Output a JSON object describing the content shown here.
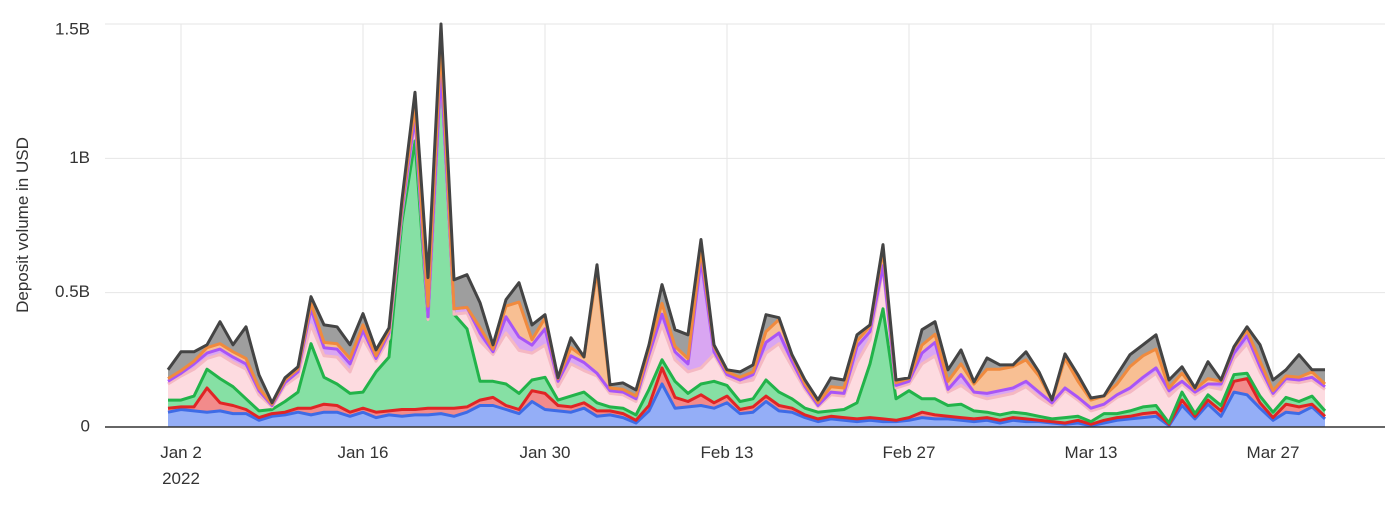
{
  "chart_data": {
    "type": "stacked-area",
    "y_label": "Deposit volume in USD",
    "ylim": [
      0,
      1500000000.0
    ],
    "yticks": [
      0,
      {
        "value": 500000000.0,
        "label": "0.5B"
      },
      {
        "value": 1000000000.0,
        "label": "1B"
      },
      {
        "value": 1500000000.0,
        "label": "1.5B"
      }
    ],
    "xticks": [
      {
        "value": "2022-01-02",
        "label": "Jan 2",
        "sublabel": "2022"
      },
      {
        "value": "2022-01-16",
        "label": "Jan 16"
      },
      {
        "value": "2022-01-30",
        "label": "Jan 30"
      },
      {
        "value": "2022-02-13",
        "label": "Feb 13"
      },
      {
        "value": "2022-02-27",
        "label": "Feb 27"
      },
      {
        "value": "2022-03-13",
        "label": "Mar 13"
      },
      {
        "value": "2022-03-27",
        "label": "Mar 27"
      }
    ],
    "grid": true,
    "x": [
      "2022-01-01",
      "2022-01-02",
      "2022-01-03",
      "2022-01-04",
      "2022-01-05",
      "2022-01-06",
      "2022-01-07",
      "2022-01-08",
      "2022-01-09",
      "2022-01-10",
      "2022-01-11",
      "2022-01-12",
      "2022-01-13",
      "2022-01-14",
      "2022-01-15",
      "2022-01-16",
      "2022-01-17",
      "2022-01-18",
      "2022-01-19",
      "2022-01-20",
      "2022-01-21",
      "2022-01-22",
      "2022-01-23",
      "2022-01-24",
      "2022-01-25",
      "2022-01-26",
      "2022-01-27",
      "2022-01-28",
      "2022-01-29",
      "2022-01-30",
      "2022-01-31",
      "2022-02-01",
      "2022-02-02",
      "2022-02-03",
      "2022-02-04",
      "2022-02-05",
      "2022-02-06",
      "2022-02-07",
      "2022-02-08",
      "2022-02-09",
      "2022-02-10",
      "2022-02-11",
      "2022-02-12",
      "2022-02-13",
      "2022-02-14",
      "2022-02-15",
      "2022-02-16",
      "2022-02-17",
      "2022-02-18",
      "2022-02-19",
      "2022-02-20",
      "2022-02-21",
      "2022-02-22",
      "2022-02-23",
      "2022-02-24",
      "2022-02-25",
      "2022-02-26",
      "2022-02-27",
      "2022-02-28",
      "2022-03-01",
      "2022-03-02",
      "2022-03-03",
      "2022-03-04",
      "2022-03-05",
      "2022-03-06",
      "2022-03-07",
      "2022-03-08",
      "2022-03-09",
      "2022-03-10",
      "2022-03-11",
      "2022-03-12",
      "2022-03-13",
      "2022-03-14",
      "2022-03-15",
      "2022-03-16",
      "2022-03-17",
      "2022-03-18",
      "2022-03-19",
      "2022-03-20",
      "2022-03-21",
      "2022-03-22",
      "2022-03-23",
      "2022-03-24",
      "2022-03-25",
      "2022-03-26",
      "2022-03-27",
      "2022-03-28",
      "2022-03-29",
      "2022-03-30",
      "2022-03-31"
    ],
    "series": [
      {
        "color": "#3e6be6",
        "fill": "#94aef7",
        "values": [
          55000000.0,
          65000000.0,
          60000000.0,
          55000000.0,
          60000000.0,
          50000000.0,
          50000000.0,
          25000000.0,
          40000000.0,
          45000000.0,
          55000000.0,
          45000000.0,
          55000000.0,
          55000000.0,
          40000000.0,
          55000000.0,
          35000000.0,
          45000000.0,
          40000000.0,
          45000000.0,
          45000000.0,
          50000000.0,
          40000000.0,
          55000000.0,
          80000000.0,
          80000000.0,
          65000000.0,
          50000000.0,
          95000000.0,
          65000000.0,
          60000000.0,
          55000000.0,
          70000000.0,
          40000000.0,
          45000000.0,
          35000000.0,
          15000000.0,
          60000000.0,
          160000000.0,
          70000000.0,
          75000000.0,
          80000000.0,
          70000000.0,
          90000000.0,
          50000000.0,
          55000000.0,
          95000000.0,
          60000000.0,
          55000000.0,
          35000000.0,
          20000000.0,
          30000000.0,
          25000000.0,
          20000000.0,
          25000000.0,
          20000000.0,
          20000000.0,
          25000000.0,
          35000000.0,
          30000000.0,
          30000000.0,
          25000000.0,
          20000000.0,
          25000000.0,
          15000000.0,
          25000000.0,
          20000000.0,
          20000000.0,
          15000000.0,
          10000000.0,
          15000000.0,
          5000000.0,
          15000000.0,
          25000000.0,
          30000000.0,
          35000000.0,
          40000000.0,
          5000000.0,
          80000000.0,
          30000000.0,
          85000000.0,
          40000000.0,
          130000000.0,
          120000000.0,
          70000000.0,
          25000000.0,
          55000000.0,
          50000000.0,
          75000000.0,
          30000000.0
        ]
      },
      {
        "color": "#e02525",
        "fill": "#f28b8b",
        "values": [
          15000000.0,
          10000000.0,
          15000000.0,
          90000000.0,
          30000000.0,
          30000000.0,
          15000000.0,
          10000000.0,
          10000000.0,
          10000000.0,
          15000000.0,
          25000000.0,
          30000000.0,
          25000000.0,
          15000000.0,
          15000000.0,
          20000000.0,
          15000000.0,
          25000000.0,
          20000000.0,
          25000000.0,
          20000000.0,
          30000000.0,
          20000000.0,
          20000000.0,
          30000000.0,
          15000000.0,
          15000000.0,
          40000000.0,
          60000000.0,
          20000000.0,
          20000000.0,
          20000000.0,
          20000000.0,
          15000000.0,
          15000000.0,
          10000000.0,
          20000000.0,
          60000000.0,
          40000000.0,
          20000000.0,
          40000000.0,
          20000000.0,
          25000000.0,
          15000000.0,
          20000000.0,
          20000000.0,
          20000000.0,
          15000000.0,
          10000000.0,
          10000000.0,
          10000000.0,
          10000000.0,
          10000000.0,
          10000000.0,
          10000000.0,
          5000000.0,
          10000000.0,
          20000000.0,
          15000000.0,
          10000000.0,
          10000000.0,
          10000000.0,
          10000000.0,
          10000000.0,
          10000000.0,
          10000000.0,
          5000000.0,
          5000000.0,
          5000000.0,
          10000000.0,
          5000000.0,
          10000000.0,
          10000000.0,
          10000000.0,
          15000000.0,
          15000000.0,
          5000000.0,
          20000000.0,
          10000000.0,
          15000000.0,
          20000000.0,
          40000000.0,
          60000000.0,
          20000000.0,
          10000000.0,
          30000000.0,
          25000000.0,
          10000000.0,
          10000000.0
        ]
      },
      {
        "color": "#22b34a",
        "fill": "#86e0a4",
        "values": [
          30000000.0,
          25000000.0,
          40000000.0,
          70000000.0,
          90000000.0,
          70000000.0,
          40000000.0,
          25000000.0,
          15000000.0,
          40000000.0,
          60000000.0,
          240000000.0,
          100000000.0,
          80000000.0,
          70000000.0,
          60000000.0,
          150000000.0,
          200000000.0,
          700000000.0,
          1000000000.0,
          330000000.0,
          1250000000.0,
          350000000.0,
          290000000.0,
          70000000.0,
          60000000.0,
          80000000.0,
          60000000.0,
          40000000.0,
          60000000.0,
          20000000.0,
          40000000.0,
          40000000.0,
          30000000.0,
          15000000.0,
          20000000.0,
          20000000.0,
          60000000.0,
          30000000.0,
          60000000.0,
          30000000.0,
          40000000.0,
          80000000.0,
          40000000.0,
          30000000.0,
          30000000.0,
          60000000.0,
          50000000.0,
          35000000.0,
          25000000.0,
          25000000.0,
          20000000.0,
          30000000.0,
          60000000.0,
          200000000.0,
          410000000.0,
          80000000.0,
          100000000.0,
          50000000.0,
          60000000.0,
          40000000.0,
          50000000.0,
          30000000.0,
          20000000.0,
          20000000.0,
          20000000.0,
          20000000.0,
          15000000.0,
          10000000.0,
          20000000.0,
          15000000.0,
          10000000.0,
          25000000.0,
          15000000.0,
          20000000.0,
          25000000.0,
          25000000.0,
          5000000.0,
          30000000.0,
          10000000.0,
          20000000.0,
          20000000.0,
          25000000.0,
          20000000.0,
          25000000.0,
          20000000.0,
          25000000.0,
          20000000.0,
          30000000.0,
          20000000.0
        ]
      },
      {
        "color": "#f5b8c2",
        "fill": "#fddbe0",
        "values": [
          60000000.0,
          90000000.0,
          100000000.0,
          40000000.0,
          90000000.0,
          90000000.0,
          110000000.0,
          60000000.0,
          10000000.0,
          60000000.0,
          60000000.0,
          70000000.0,
          80000000.0,
          100000000.0,
          80000000.0,
          200000000.0,
          40000000.0,
          70000000.0,
          30000000.0,
          80000000.0,
          0,
          0,
          0,
          60000000.0,
          150000000.0,
          100000000.0,
          190000000.0,
          160000000.0,
          100000000.0,
          120000000.0,
          50000000.0,
          120000000.0,
          80000000.0,
          100000000.0,
          50000000.0,
          50000000.0,
          50000000.0,
          100000000.0,
          130000000.0,
          80000000.0,
          80000000.0,
          60000000.0,
          100000000.0,
          30000000.0,
          70000000.0,
          70000000.0,
          100000000.0,
          180000000.0,
          120000000.0,
          70000000.0,
          20000000.0,
          60000000.0,
          50000000.0,
          150000000.0,
          90000000.0,
          150000000.0,
          40000000.0,
          25000000.0,
          130000000.0,
          160000000.0,
          50000000.0,
          70000000.0,
          60000000.0,
          50000000.0,
          70000000.0,
          70000000.0,
          100000000.0,
          70000000.0,
          50000000.0,
          100000000.0,
          60000000.0,
          40000000.0,
          25000000.0,
          60000000.0,
          70000000.0,
          90000000.0,
          120000000.0,
          100000000.0,
          30000000.0,
          70000000.0,
          30000000.0,
          60000000.0,
          60000000.0,
          110000000.0,
          90000000.0,
          60000000.0,
          60000000.0,
          70000000.0,
          60000000.0,
          80000000.0
        ]
      },
      {
        "color": "#a855f7",
        "fill": "#d9a6f2",
        "values": [
          10000000.0,
          10000000.0,
          20000000.0,
          20000000.0,
          20000000.0,
          20000000.0,
          20000000.0,
          15000000.0,
          5000000.0,
          10000000.0,
          15000000.0,
          60000000.0,
          30000000.0,
          30000000.0,
          30000000.0,
          30000000.0,
          10000000.0,
          20000000.0,
          10000000.0,
          10000000.0,
          10000000.0,
          10000000.0,
          20000000.0,
          20000000.0,
          30000000.0,
          10000000.0,
          60000000.0,
          50000000.0,
          30000000.0,
          60000000.0,
          20000000.0,
          30000000.0,
          30000000.0,
          10000000.0,
          10000000.0,
          10000000.0,
          10000000.0,
          30000000.0,
          40000000.0,
          30000000.0,
          30000000.0,
          400000000.0,
          10000000.0,
          10000000.0,
          10000000.0,
          20000000.0,
          40000000.0,
          40000000.0,
          20000000.0,
          10000000.0,
          5000000.0,
          10000000.0,
          10000000.0,
          60000000.0,
          30000000.0,
          10000000.0,
          10000000.0,
          10000000.0,
          40000000.0,
          50000000.0,
          10000000.0,
          40000000.0,
          10000000.0,
          20000000.0,
          20000000.0,
          20000000.0,
          20000000.0,
          20000000.0,
          10000000.0,
          10000000.0,
          10000000.0,
          10000000.0,
          10000000.0,
          10000000.0,
          15000000.0,
          20000000.0,
          20000000.0,
          20000000.0,
          10000000.0,
          10000000.0,
          10000000.0,
          20000000.0,
          20000000.0,
          30000000.0,
          20000000.0,
          10000000.0,
          10000000.0,
          10000000.0,
          10000000.0,
          10000000.0
        ]
      },
      {
        "color": "#f08a3e",
        "fill": "#f8bf93",
        "values": [
          10000000.0,
          10000000.0,
          10000000.0,
          20000000.0,
          20000000.0,
          20000000.0,
          20000000.0,
          10000000.0,
          5000000.0,
          10000000.0,
          10000000.0,
          20000000.0,
          20000000.0,
          20000000.0,
          20000000.0,
          20000000.0,
          10000000.0,
          10000000.0,
          20000000.0,
          40000000.0,
          40000000.0,
          100000000.0,
          0,
          0,
          20000000.0,
          10000000.0,
          40000000.0,
          130000000.0,
          20000000.0,
          40000000.0,
          10000000.0,
          30000000.0,
          20000000.0,
          380000000.0,
          10000000.0,
          10000000.0,
          10000000.0,
          20000000.0,
          40000000.0,
          20000000.0,
          20000000.0,
          40000000.0,
          20000000.0,
          10000000.0,
          10000000.0,
          10000000.0,
          40000000.0,
          50000000.0,
          20000000.0,
          10000000.0,
          10000000.0,
          20000000.0,
          20000000.0,
          20000000.0,
          20000000.0,
          60000000.0,
          10000000.0,
          10000000.0,
          30000000.0,
          30000000.0,
          30000000.0,
          40000000.0,
          30000000.0,
          90000000.0,
          80000000.0,
          80000000.0,
          80000000.0,
          60000000.0,
          10000000.0,
          110000000.0,
          60000000.0,
          30000000.0,
          30000000.0,
          40000000.0,
          80000000.0,
          80000000.0,
          70000000.0,
          10000000.0,
          30000000.0,
          10000000.0,
          20000000.0,
          10000000.0,
          20000000.0,
          20000000.0,
          20000000.0,
          10000000.0,
          10000000.0,
          10000000.0,
          20000000.0,
          10000000.0
        ]
      },
      {
        "color": "#444444",
        "fill": "#9e9e9e",
        "values": [
          33000000.0,
          70000000.0,
          35000000.0,
          11000000.0,
          82000000.0,
          26000000.0,
          118000000.0,
          49000000.0,
          5000000.0,
          8000000.0,
          9000000.0,
          25000000.0,
          65000000.0,
          63000000.0,
          51000000.0,
          42000000.0,
          22000000.0,
          9000000.0,
          22000000.0,
          51000000.0,
          106000000.0,
          70000000.0,
          108000000.0,
          122000000.0,
          93000000.0,
          16000000.0,
          24000000.0,
          72000000.0,
          55000000.0,
          13000000.0,
          3000000.0,
          37000000.0,
          1000000.0,
          24000000.0,
          12000000.0,
          24000000.0,
          23000000.0,
          16000000.0,
          70000000.0,
          62000000.0,
          88000000.0,
          38000000.0,
          6000000.0,
          8000000.0,
          20000000.0,
          26000000.0,
          63000000.0,
          7000000.0,
          4000000.0,
          15000000.0,
          11000000.0,
          33000000.0,
          30000000.0,
          23000000.0,
          5000000.0,
          19000000.0,
          10000000.0,
          3000000.0,
          57000000.0,
          47000000.0,
          43000000.0,
          52000000.0,
          8000000.0,
          42000000.0,
          16000000.0,
          6000000.0,
          30000000.0,
          15000000.0,
          1000000.0,
          17000000.0,
          24000000.0,
          8000000.0,
          1000000.0,
          34000000.0,
          44000000.0,
          41000000.0,
          53000000.0,
          30000000.0,
          24000000.0,
          6000000.0,
          63000000.0,
          5000000.0,
          4000000.0,
          13000000.0,
          61000000.0,
          40000000.0,
          23000000.0,
          84000000.0,
          8000000.0,
          53000000.0
        ]
      }
    ]
  }
}
